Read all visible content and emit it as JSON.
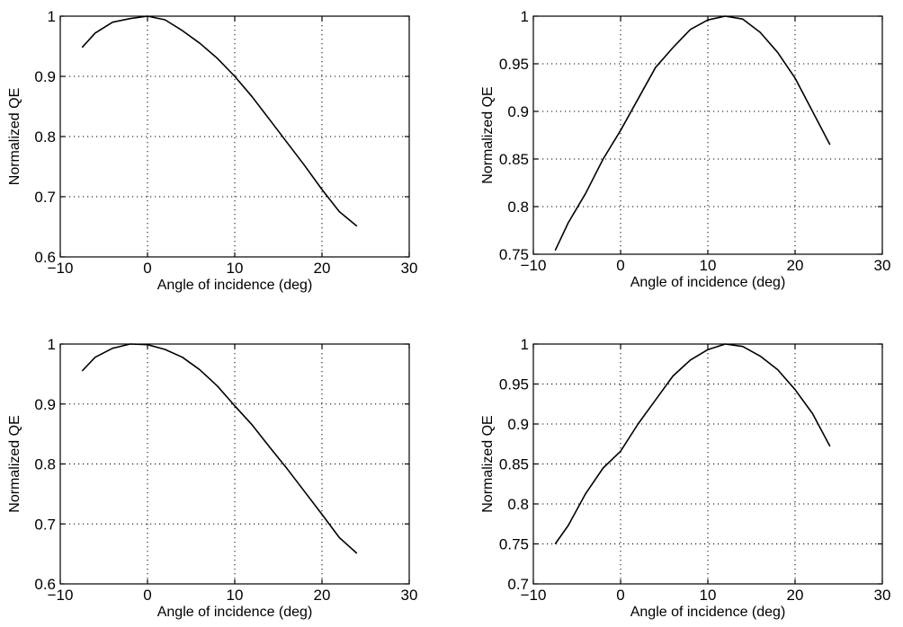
{
  "chart_data": [
    {
      "type": "line",
      "xlabel": "Angle of incidence (deg)",
      "ylabel": "Normalized QE",
      "xlim": [
        -10,
        30
      ],
      "ylim": [
        0.6,
        1
      ],
      "xticks": [
        -10,
        0,
        10,
        20,
        30
      ],
      "xtick_labels": [
        "−10",
        "0",
        "10",
        "20",
        "30"
      ],
      "yticks": [
        0.6,
        0.7,
        0.8,
        0.9,
        1
      ],
      "ytick_labels": [
        "0.6",
        "0.7",
        "0.8",
        "0.9",
        "1"
      ],
      "grid": true,
      "series": [
        {
          "x": [
            -7.5,
            -6,
            -4,
            -2,
            0,
            2,
            4,
            6,
            8,
            10,
            12,
            14,
            16,
            18,
            20,
            22,
            24
          ],
          "y": [
            0.948,
            0.972,
            0.99,
            0.996,
            1.0,
            0.994,
            0.976,
            0.955,
            0.93,
            0.9,
            0.866,
            0.828,
            0.79,
            0.752,
            0.712,
            0.675,
            0.651
          ]
        }
      ]
    },
    {
      "type": "line",
      "xlabel": "Angle of incidence (deg)",
      "ylabel": "Normalized QE",
      "xlim": [
        -10,
        30
      ],
      "ylim": [
        0.75,
        1
      ],
      "xticks": [
        -10,
        0,
        10,
        20,
        30
      ],
      "xtick_labels": [
        "−10",
        "0",
        "10",
        "20",
        "30"
      ],
      "yticks": [
        0.75,
        0.8,
        0.85,
        0.9,
        0.95,
        1
      ],
      "ytick_labels": [
        "0.75",
        "0.8",
        "0.85",
        "0.9",
        "0.95",
        "1"
      ],
      "grid": true,
      "series": [
        {
          "x": [
            -7.5,
            -6,
            -4,
            -2,
            0,
            2,
            4,
            6,
            8,
            10,
            12,
            14,
            16,
            18,
            20,
            22,
            24
          ],
          "y": [
            0.754,
            0.783,
            0.814,
            0.85,
            0.88,
            0.913,
            0.946,
            0.967,
            0.986,
            0.996,
            1.0,
            0.997,
            0.983,
            0.962,
            0.935,
            0.9,
            0.865
          ]
        }
      ]
    },
    {
      "type": "line",
      "xlabel": "Angle of incidence (deg)",
      "ylabel": "Normalized QE",
      "xlim": [
        -10,
        30
      ],
      "ylim": [
        0.6,
        1
      ],
      "xticks": [
        -10,
        0,
        10,
        20,
        30
      ],
      "xtick_labels": [
        "−10",
        "0",
        "10",
        "20",
        "30"
      ],
      "yticks": [
        0.6,
        0.7,
        0.8,
        0.9,
        1
      ],
      "ytick_labels": [
        "0.6",
        "0.7",
        "0.8",
        "0.9",
        "1"
      ],
      "grid": true,
      "series": [
        {
          "x": [
            -7.5,
            -6,
            -4,
            -2,
            0,
            2,
            4,
            6,
            8,
            10,
            12,
            14,
            16,
            18,
            20,
            22,
            24
          ],
          "y": [
            0.955,
            0.978,
            0.993,
            1.0,
            0.999,
            0.991,
            0.978,
            0.957,
            0.93,
            0.897,
            0.865,
            0.828,
            0.792,
            0.754,
            0.716,
            0.677,
            0.651
          ]
        }
      ]
    },
    {
      "type": "line",
      "xlabel": "Angle of incidence (deg)",
      "ylabel": "Normalized QE",
      "xlim": [
        -10,
        30
      ],
      "ylim": [
        0.7,
        1
      ],
      "xticks": [
        -10,
        0,
        10,
        20,
        30
      ],
      "xtick_labels": [
        "−10",
        "0",
        "10",
        "20",
        "30"
      ],
      "yticks": [
        0.7,
        0.75,
        0.8,
        0.85,
        0.9,
        0.95,
        1
      ],
      "ytick_labels": [
        "0.7",
        "0.75",
        "0.8",
        "0.85",
        "0.9",
        "0.95",
        "1"
      ],
      "grid": true,
      "series": [
        {
          "x": [
            -7.5,
            -6,
            -4,
            -2,
            0,
            2,
            4,
            6,
            8,
            10,
            12,
            14,
            16,
            18,
            20,
            22,
            24
          ],
          "y": [
            0.75,
            0.773,
            0.813,
            0.845,
            0.866,
            0.9,
            0.93,
            0.96,
            0.98,
            0.993,
            1.0,
            0.997,
            0.985,
            0.968,
            0.943,
            0.913,
            0.872
          ]
        }
      ]
    }
  ]
}
